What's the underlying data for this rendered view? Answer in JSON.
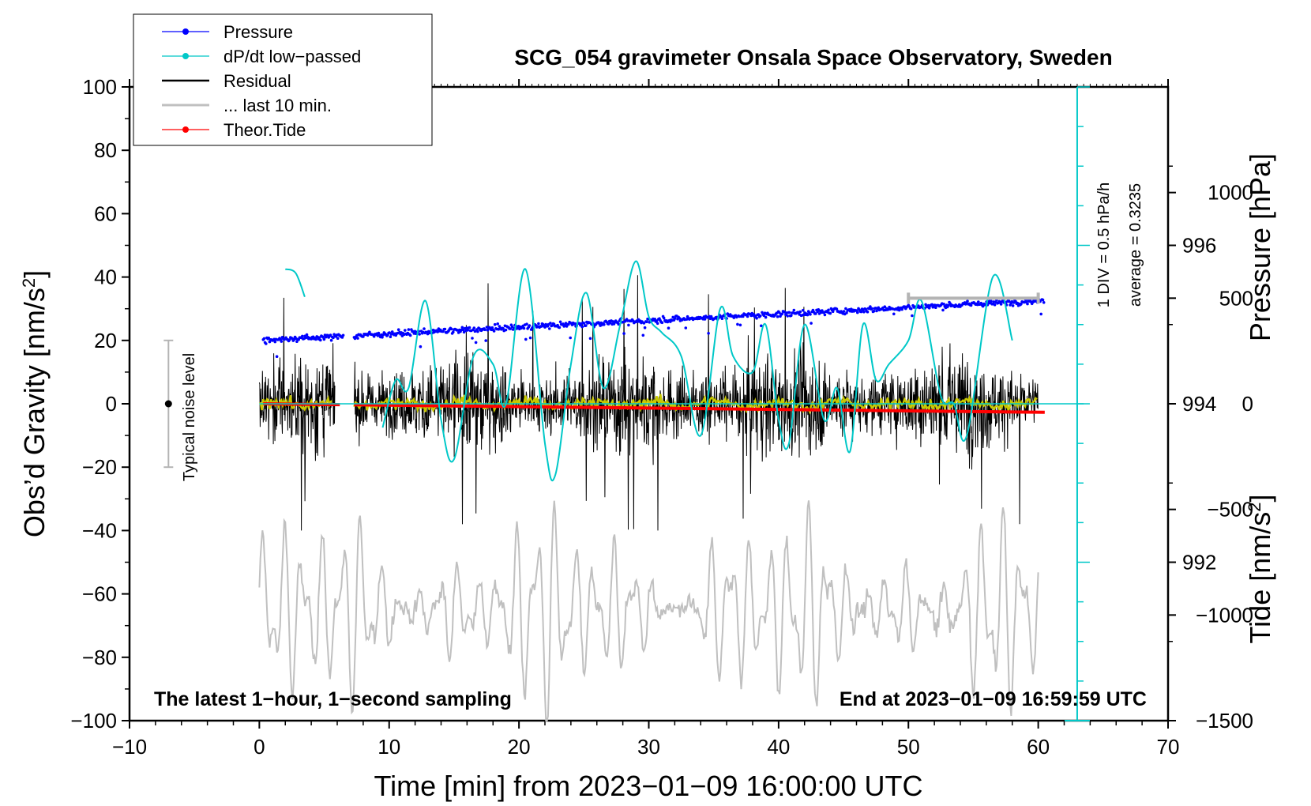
{
  "chart_data": {
    "type": "line",
    "title": "SCG_054 gravimeter Onsala Space Observatory, Sweden",
    "xlabel": "Time [min] from 2023−01−09 16:00:00 UTC",
    "ylabel_left": "Obs’d Gravity [nm/s",
    "ylabel_left_sup": "2",
    "ylabel_left_tail": "]",
    "ylabel_right_pressure": "Pressure [hPa]",
    "ylabel_right_tide": "Tide [nm/s",
    "ylabel_right_tide_sup": "2",
    "ylabel_right_tide_tail": "]",
    "xlim": [
      -10,
      70
    ],
    "ylim_gravity": [
      -100,
      100
    ],
    "ylim_pressure": [
      990,
      998
    ],
    "ylim_tide": [
      -1500,
      1500
    ],
    "x_ticks": [
      "−10",
      "0",
      "10",
      "20",
      "30",
      "40",
      "50",
      "60",
      "70"
    ],
    "x_tick_values": [
      -10,
      0,
      10,
      20,
      30,
      40,
      50,
      60,
      70
    ],
    "y_ticks_gravity": [
      "−100",
      "−80",
      "−60",
      "−40",
      "−20",
      "0",
      "20",
      "40",
      "60",
      "80",
      "100"
    ],
    "y_tick_values_gravity": [
      -100,
      -80,
      -60,
      -40,
      -20,
      0,
      20,
      40,
      60,
      80,
      100
    ],
    "y_ticks_pressure": [
      "996",
      "994",
      "992"
    ],
    "y_tick_values_pressure": [
      996,
      994,
      992
    ],
    "y_ticks_tide": [
      "1000",
      "500",
      "0",
      "−500",
      "−1000",
      "−1500"
    ],
    "y_tick_values_tide": [
      1000,
      500,
      0,
      -500,
      -1000,
      -1500
    ],
    "legend": [
      {
        "label": "Pressure",
        "color": "#0000ff",
        "marker": true
      },
      {
        "label": "dP/dt low−passed",
        "color": "#00c8c8",
        "marker": true
      },
      {
        "label": "Residual",
        "color": "#000000",
        "marker": false
      },
      {
        "label": "... last 10 min.",
        "color": "#c0c0c0",
        "marker": false
      },
      {
        "label": "Theor.Tide",
        "color": "#ff0000",
        "marker": true
      }
    ],
    "annotations": {
      "bottom_left": "The latest 1−hour, 1−second sampling",
      "bottom_right": "End at 2023−01−09 16:59:59 UTC",
      "noise_label": "Typical noise level",
      "dpdt_scale": "1 DIV = 0.5 hPa/h",
      "dpdt_average": "average = 0.3235"
    },
    "noise_bar": {
      "x": -7,
      "center": 0,
      "low": -20,
      "high": 20
    },
    "last10_bar": {
      "x_start": 50,
      "x_end": 60,
      "tide_value": 500
    },
    "dpdt_scale_bar": {
      "x": 63,
      "p_low": 990,
      "p_high": 998,
      "divisions": 16
    },
    "data_gap": {
      "start": 6.2,
      "end": 7.3
    },
    "series": [
      {
        "name": "Pressure",
        "unit": "hPa",
        "color": "#0000ff",
        "start": 994.8,
        "end": 995.3
      },
      {
        "name": "dP/dt low-passed",
        "color": "#00c8c8",
        "baseline_hpa": 994,
        "x": [
          9.5,
          10.5,
          11.5,
          12.8,
          14.0,
          15.0,
          16.5,
          18.0,
          19.0,
          20.5,
          22.0,
          22.8,
          24.0,
          25.2,
          26.5,
          27.8,
          29.0,
          30.0,
          31.0,
          32.5,
          34.0,
          35.5,
          36.5,
          38.0,
          39.0,
          40.0,
          40.8,
          42.0,
          43.5,
          44.5,
          45.5,
          46.5,
          47.5,
          48.5,
          50.0,
          51.0,
          52.5,
          53.5,
          54.5,
          56.5,
          58.0
        ],
        "y": [
          993.7,
          994.3,
          994.2,
          995.3,
          993.8,
          993.3,
          994.6,
          994.5,
          994.0,
          995.7,
          993.5,
          993.1,
          994.5,
          995.4,
          994.2,
          995.0,
          995.8,
          995.1,
          994.9,
          994.6,
          993.6,
          995.2,
          994.6,
          994.4,
          995.0,
          993.8,
          993.5,
          995.0,
          993.8,
          994.2,
          993.4,
          995.0,
          994.3,
          994.5,
          994.8,
          995.3,
          994.1,
          994.0,
          993.6,
          995.6,
          994.8
        ]
      },
      {
        "name": "dP/dt pre-gap",
        "color": "#00c8c8",
        "x": [
          2.0,
          2.8,
          3.5
        ],
        "y": [
          995.7,
          995.65,
          995.35
        ]
      },
      {
        "name": "Residual",
        "unit": "nm/s2",
        "color": "#000000",
        "typical_amplitude": 20,
        "peak_max": 43,
        "peak_min": -40
      },
      {
        "name": "Residual smoothed",
        "color": "#c8c800",
        "level": 0
      },
      {
        "name": "... last 10 min.",
        "color": "#c0c0c0",
        "unit": "nm/s2 (magnified)",
        "center_gravity": -65,
        "amplitude_gravity": 20
      },
      {
        "name": "Theor.Tide",
        "unit": "nm/s2",
        "color": "#ff0000",
        "x": [
          0,
          60
        ],
        "y": [
          0,
          -40
        ]
      }
    ]
  }
}
